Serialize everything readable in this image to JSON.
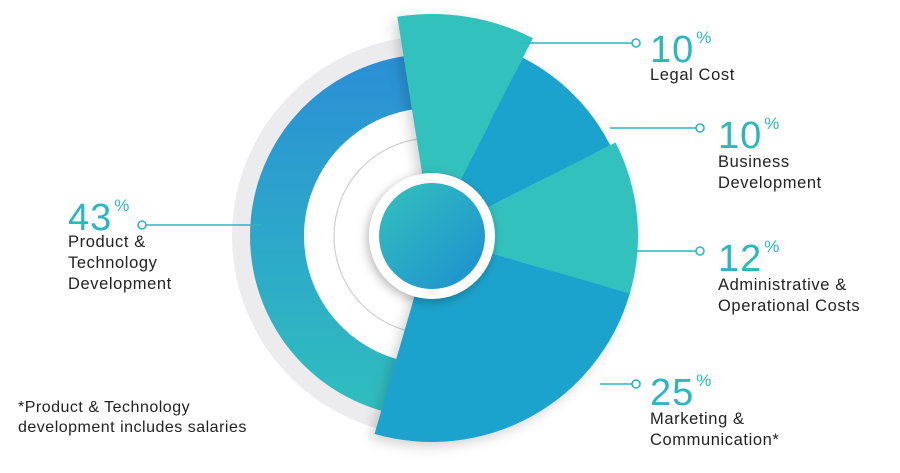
{
  "chart_data": {
    "type": "pie",
    "categories": [
      "Legal Cost",
      "Business\nDevelopment",
      "Administrative &\nOperational Costs",
      "Marketing &\nCommunication*",
      "Product &\nTechnology\nDevelopment"
    ],
    "values": [
      10,
      10,
      12,
      25,
      43
    ],
    "value_labels": [
      "10",
      "10",
      "12",
      "25",
      "43"
    ],
    "unit": "%",
    "colors": [
      "#33c1bd",
      "#1ba3cd",
      "#33c1bd",
      "#1ba3cd",
      "#2a9fd4"
    ]
  },
  "footnote": "*Product & Technology\ndevelopment includes salaries"
}
